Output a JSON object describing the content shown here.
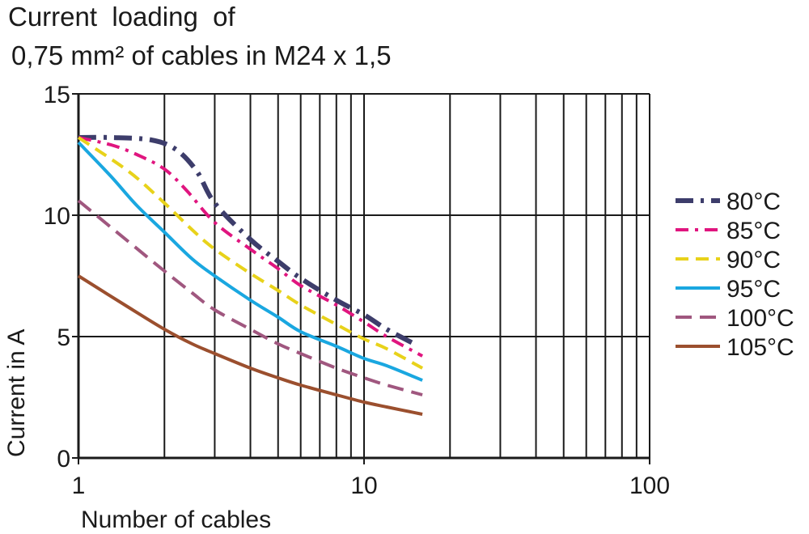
{
  "chart_data": {
    "type": "line",
    "title_line1": "Current  loading  of",
    "title_line2": "0,75 mm² of cables in M24 x 1,5",
    "xlabel": "Number  of  cables",
    "ylabel": "Current in A",
    "xscale": "log",
    "xlim": [
      1,
      100
    ],
    "ylim": [
      0,
      15
    ],
    "xticks": [
      {
        "value": 1,
        "label": "1"
      },
      {
        "value": 10,
        "label": "10"
      },
      {
        "value": 100,
        "label": "100"
      }
    ],
    "yticks": [
      {
        "value": 0,
        "label": "0"
      },
      {
        "value": 5,
        "label": "5"
      },
      {
        "value": 10,
        "label": "10"
      },
      {
        "value": 15,
        "label": "15"
      }
    ],
    "grid": true,
    "legend_position": "right",
    "series": [
      {
        "name": "80°C",
        "color": "#3d3d6b",
        "dash": "dash-dot-bold",
        "x": [
          1,
          1.3,
          1.8,
          2.2,
          2.6,
          3,
          4,
          5,
          6,
          8,
          10,
          12,
          15
        ],
        "y": [
          13.2,
          13.2,
          13.1,
          12.7,
          11.8,
          10.5,
          9.0,
          8.1,
          7.4,
          6.5,
          5.9,
          5.3,
          4.7
        ]
      },
      {
        "name": "85°C",
        "color": "#e0157f",
        "dash": "dash-dot",
        "x": [
          1,
          1.3,
          1.6,
          2,
          2.4,
          3,
          4,
          5,
          6,
          8,
          10,
          12,
          16
        ],
        "y": [
          13.2,
          12.9,
          12.5,
          11.9,
          11.0,
          9.7,
          8.6,
          7.8,
          7.1,
          6.3,
          5.6,
          5.0,
          4.2
        ]
      },
      {
        "name": "90°C",
        "color": "#e8d21a",
        "dash": "dashed",
        "x": [
          1,
          1.5,
          2,
          2.5,
          3,
          4,
          5,
          6,
          8,
          10,
          12,
          16
        ],
        "y": [
          13.2,
          11.8,
          10.5,
          9.4,
          8.6,
          7.6,
          6.9,
          6.3,
          5.5,
          4.9,
          4.5,
          3.7
        ]
      },
      {
        "name": "95°C",
        "color": "#1aa7e0",
        "dash": "solid",
        "x": [
          1,
          1.3,
          1.6,
          2,
          2.5,
          3,
          4,
          5,
          6,
          8,
          10,
          12,
          16
        ],
        "y": [
          13.0,
          11.6,
          10.4,
          9.3,
          8.2,
          7.5,
          6.5,
          5.8,
          5.2,
          4.6,
          4.1,
          3.8,
          3.2
        ]
      },
      {
        "name": "100°C",
        "color": "#a0577f",
        "dash": "long-dash",
        "x": [
          1,
          1.5,
          2,
          2.5,
          3,
          4,
          5,
          6,
          8,
          10,
          12,
          16
        ],
        "y": [
          10.6,
          8.9,
          7.7,
          6.8,
          6.1,
          5.3,
          4.7,
          4.3,
          3.7,
          3.3,
          3.0,
          2.6
        ]
      },
      {
        "name": "105°C",
        "color": "#9b4f2e",
        "dash": "solid",
        "x": [
          1,
          1.5,
          2,
          2.5,
          3,
          4,
          5,
          6,
          8,
          10,
          12,
          16
        ],
        "y": [
          7.5,
          6.2,
          5.3,
          4.7,
          4.3,
          3.7,
          3.3,
          3.0,
          2.6,
          2.3,
          2.1,
          1.8
        ]
      }
    ]
  }
}
